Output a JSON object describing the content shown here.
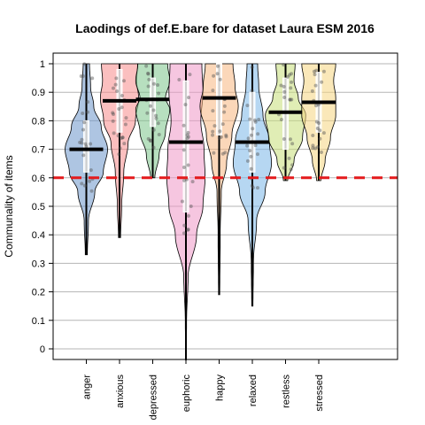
{
  "chart_data": {
    "type": "violin",
    "title": "Laodings of def.E.bare for dataset Laura ESM 2016",
    "xlabel": "",
    "ylabel": "Communality of items",
    "ylim": [
      -0.04,
      1.04
    ],
    "yticks": [
      "0",
      "0.1",
      "0.2",
      "0.3",
      "0.4",
      "0.5",
      "0.6",
      "0.7",
      "0.8",
      "0.9",
      "1"
    ],
    "grid": "horizontal",
    "threshold": {
      "value": 0.6,
      "color": "#e41a1c",
      "style": "dashed"
    },
    "categories": [
      "anger",
      "anxious",
      "depressed",
      "euphoric",
      "happy",
      "relaxed",
      "restless",
      "stressed"
    ],
    "series": [
      {
        "name": "anger",
        "color": "#6b96cb",
        "min": 0.33,
        "max": 1.0,
        "median": 0.7,
        "q1": 0.62,
        "q3": 0.8,
        "density": [
          [
            0.33,
            0.05
          ],
          [
            0.45,
            0.1
          ],
          [
            0.55,
            0.4
          ],
          [
            0.62,
            0.8
          ],
          [
            0.7,
            1.0
          ],
          [
            0.78,
            0.7
          ],
          [
            0.85,
            0.35
          ],
          [
            0.92,
            0.2
          ],
          [
            1.0,
            0.15
          ]
        ]
      },
      {
        "name": "anxious",
        "color": "#f88a8a",
        "min": 0.39,
        "max": 1.0,
        "median": 0.87,
        "q1": 0.76,
        "q3": 0.98,
        "density": [
          [
            0.39,
            0.05
          ],
          [
            0.5,
            0.1
          ],
          [
            0.62,
            0.2
          ],
          [
            0.72,
            0.4
          ],
          [
            0.8,
            0.75
          ],
          [
            0.88,
            0.9
          ],
          [
            0.94,
            0.8
          ],
          [
            1.0,
            0.85
          ]
        ]
      },
      {
        "name": "depressed",
        "color": "#7bc58a",
        "min": 0.6,
        "max": 1.0,
        "median": 0.875,
        "q1": 0.78,
        "q3": 0.95,
        "density": [
          [
            0.6,
            0.1
          ],
          [
            0.68,
            0.3
          ],
          [
            0.76,
            0.6
          ],
          [
            0.84,
            0.8
          ],
          [
            0.88,
            0.6
          ],
          [
            0.94,
            0.8
          ],
          [
            1.0,
            0.7
          ]
        ]
      },
      {
        "name": "euphoric",
        "color": "#ee97c7",
        "min": -0.04,
        "max": 1.0,
        "median": 0.725,
        "q1": 0.48,
        "q3": 0.94,
        "density": [
          [
            -0.04,
            0.01
          ],
          [
            0.1,
            0.03
          ],
          [
            0.25,
            0.1
          ],
          [
            0.4,
            0.5
          ],
          [
            0.5,
            0.8
          ],
          [
            0.6,
            0.9
          ],
          [
            0.7,
            0.85
          ],
          [
            0.8,
            0.7
          ],
          [
            0.9,
            0.8
          ],
          [
            1.0,
            0.75
          ]
        ]
      },
      {
        "name": "happy",
        "color": "#f7b67f",
        "min": 0.19,
        "max": 1.0,
        "median": 0.88,
        "q1": 0.75,
        "q3": 1.0,
        "density": [
          [
            0.19,
            0.03
          ],
          [
            0.4,
            0.05
          ],
          [
            0.55,
            0.1
          ],
          [
            0.65,
            0.35
          ],
          [
            0.75,
            0.6
          ],
          [
            0.85,
            0.9
          ],
          [
            0.92,
            0.75
          ],
          [
            1.0,
            0.65
          ]
        ]
      },
      {
        "name": "relaxed",
        "color": "#7ab7e8",
        "min": 0.15,
        "max": 1.0,
        "median": 0.725,
        "q1": 0.62,
        "q3": 0.9,
        "density": [
          [
            0.15,
            0.03
          ],
          [
            0.3,
            0.05
          ],
          [
            0.45,
            0.2
          ],
          [
            0.55,
            0.6
          ],
          [
            0.65,
            0.9
          ],
          [
            0.73,
            0.8
          ],
          [
            0.82,
            0.5
          ],
          [
            0.92,
            0.3
          ],
          [
            1.0,
            0.25
          ]
        ]
      },
      {
        "name": "restless",
        "color": "#c6de79",
        "min": 0.59,
        "max": 1.0,
        "median": 0.83,
        "q1": 0.7,
        "q3": 0.95,
        "density": [
          [
            0.59,
            0.1
          ],
          [
            0.66,
            0.4
          ],
          [
            0.74,
            0.8
          ],
          [
            0.82,
            0.95
          ],
          [
            0.88,
            0.6
          ],
          [
            0.94,
            0.4
          ],
          [
            1.0,
            0.45
          ]
        ]
      },
      {
        "name": "stressed",
        "color": "#f5d67f",
        "min": 0.59,
        "max": 1.0,
        "median": 0.865,
        "q1": 0.76,
        "q3": 0.97,
        "density": [
          [
            0.59,
            0.1
          ],
          [
            0.66,
            0.3
          ],
          [
            0.74,
            0.55
          ],
          [
            0.82,
            0.8
          ],
          [
            0.88,
            0.8
          ],
          [
            0.94,
            0.7
          ],
          [
            1.0,
            0.8
          ]
        ]
      }
    ]
  }
}
